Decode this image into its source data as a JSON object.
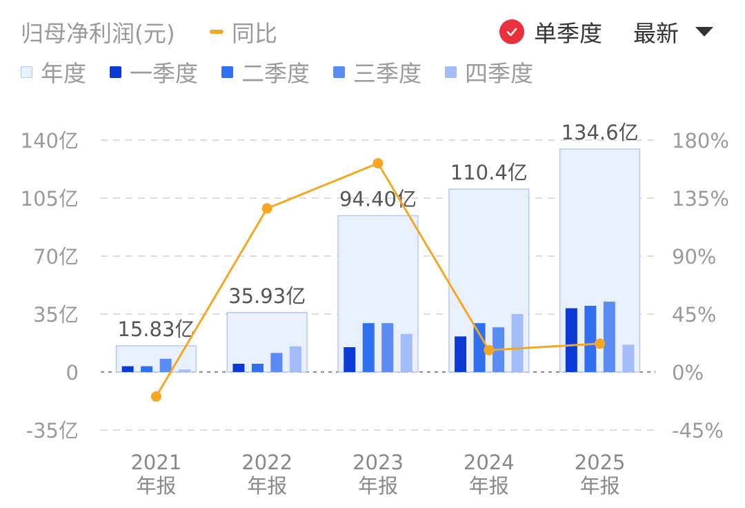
{
  "header": {
    "title": "归母净利润(元)",
    "yoy_label": "同比",
    "toggle_label": "单季度",
    "dropdown_label": "最新"
  },
  "legend": [
    {
      "label": "年度",
      "color": "#e8effd"
    },
    {
      "label": "一季度",
      "color": "#0b3bd6"
    },
    {
      "label": "二季度",
      "color": "#2f6ff0"
    },
    {
      "label": "三季度",
      "color": "#5a8cf3"
    },
    {
      "label": "四季度",
      "color": "#a4bdf8"
    }
  ],
  "chart_data": {
    "type": "bar",
    "categories": [
      "2021\n年报",
      "2022\n年报",
      "2023\n年报",
      "2024\n年报",
      "2025\n年报"
    ],
    "annual": {
      "name": "年度",
      "values": [
        15.83,
        35.93,
        94.4,
        110.4,
        134.6
      ],
      "labels": [
        "15.83亿",
        "35.93亿",
        "94.40亿",
        "110.4亿",
        "134.6亿"
      ]
    },
    "series": [
      {
        "name": "一季度",
        "values": [
          3.5,
          5.0,
          15.0,
          21.5,
          38.5
        ]
      },
      {
        "name": "二季度",
        "values": [
          3.5,
          5.0,
          29.5,
          29.5,
          40.0
        ]
      },
      {
        "name": "三季度",
        "values": [
          8.0,
          11.5,
          29.5,
          27.0,
          42.5
        ]
      },
      {
        "name": "四季度",
        "values": [
          1.5,
          15.5,
          23.0,
          35.0,
          16.5
        ]
      }
    ],
    "yoy": {
      "name": "同比",
      "values": [
        -19,
        127,
        162,
        17,
        22
      ]
    },
    "y_left": {
      "min": -35,
      "max": 140,
      "ticks": [
        -35,
        0,
        35,
        70,
        105,
        140
      ],
      "tick_labels": [
        "-35亿",
        "0",
        "35亿",
        "70亿",
        "105亿",
        "140亿"
      ]
    },
    "y_right": {
      "min": -45,
      "max": 180,
      "tick_labels": [
        "-45%",
        "0%",
        "45%",
        "90%",
        "135%",
        "180%"
      ]
    },
    "colors": {
      "annual_fill": "#e8effd",
      "annual_stroke": "#b6c8f2",
      "yoy": "#f5a623",
      "grid": "#d0d0d0",
      "zero": "#888888",
      "axis_text": "#9a9a9a"
    },
    "grid": true
  }
}
